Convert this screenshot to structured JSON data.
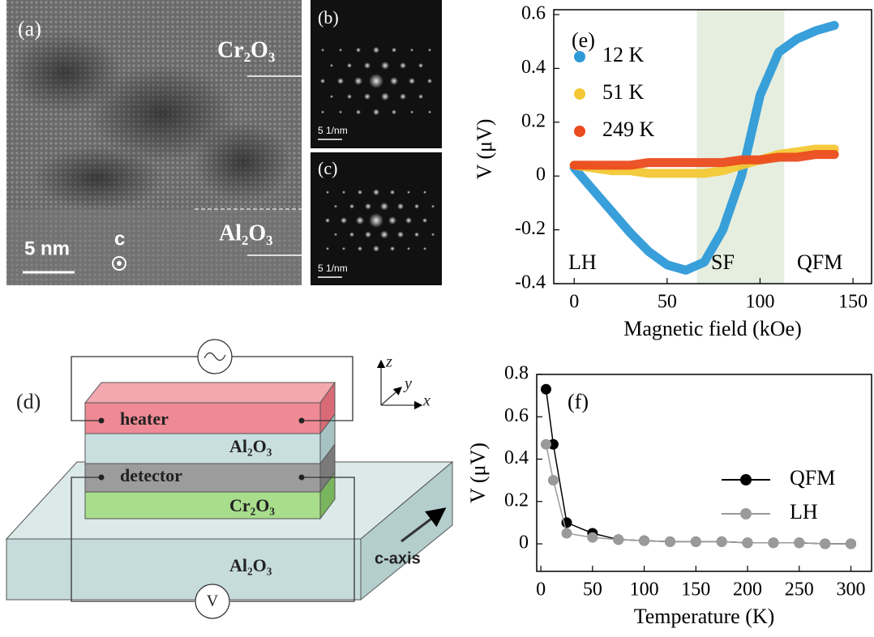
{
  "panel_a": {
    "label": "(a)",
    "top_layer": "Cr₂O₃",
    "bottom_layer": "Al₂O₃",
    "scale_bar": "5 nm",
    "axis": "c"
  },
  "panel_b": {
    "label": "(b)",
    "scale": "5 1/nm"
  },
  "panel_c": {
    "label": "(c)",
    "scale": "5 1/nm"
  },
  "panel_d": {
    "label": "(d)",
    "heater": "heater",
    "middle_layer": "Al₂O₃",
    "detector": "detector",
    "film": "Cr₂O₃",
    "substrate": "Al₂O₃",
    "c_axis": "c-axis",
    "axes": [
      "z",
      "y",
      "x"
    ],
    "voltmeter": "V"
  },
  "chart_data": [
    {
      "type": "line",
      "panel_label": "(e)",
      "x_label": "Magnetic field (kOe)",
      "y_label": "V (μV)",
      "x": [
        0,
        10,
        20,
        30,
        40,
        50,
        60,
        70,
        80,
        90,
        100,
        110,
        120,
        130,
        140
      ],
      "series": [
        {
          "name": "12 K",
          "color": "#2e9ad8",
          "values": [
            0.03,
            -0.05,
            -0.13,
            -0.21,
            -0.28,
            -0.33,
            -0.35,
            -0.32,
            -0.2,
            0.0,
            0.3,
            0.46,
            0.51,
            0.54,
            0.56
          ]
        },
        {
          "name": "51 K",
          "color": "#f3c834",
          "values": [
            0.04,
            0.03,
            0.02,
            0.02,
            0.01,
            0.01,
            0.01,
            0.01,
            0.02,
            0.04,
            0.06,
            0.08,
            0.09,
            0.1,
            0.1
          ]
        },
        {
          "name": "249 K",
          "color": "#eb4b1e",
          "values": [
            0.04,
            0.04,
            0.04,
            0.04,
            0.05,
            0.05,
            0.05,
            0.05,
            0.05,
            0.06,
            0.06,
            0.07,
            0.07,
            0.08,
            0.08
          ]
        }
      ],
      "shaded_range": [
        66,
        113
      ],
      "annotations": [
        "LH",
        "SF",
        "QFM"
      ],
      "xlim": [
        -11,
        160
      ],
      "xticks": [
        0,
        50,
        100,
        150
      ],
      "ylim": [
        -0.4,
        0.6
      ],
      "yticks": [
        -0.4,
        -0.2,
        0,
        0.2,
        0.4,
        0.6
      ],
      "legend": "upper left"
    },
    {
      "type": "line",
      "panel_label": "(f)",
      "x_label": "Temperature (K)",
      "y_label": "V (μV)",
      "x": [
        5,
        12,
        25,
        50,
        75,
        100,
        125,
        150,
        175,
        200,
        225,
        250,
        275,
        300
      ],
      "series": [
        {
          "name": "QFM",
          "color": "#000000",
          "values": [
            0.73,
            0.47,
            0.1,
            0.05,
            0.02,
            0.015,
            0.01,
            0.01,
            0.01,
            0.005,
            0.005,
            0.005,
            0.0,
            0.0
          ]
        },
        {
          "name": "LH",
          "color": "#9a9a9a",
          "values": [
            0.47,
            0.3,
            0.05,
            0.03,
            0.02,
            0.015,
            0.01,
            0.01,
            0.01,
            0.005,
            0.005,
            0.005,
            0.0,
            0.0
          ]
        }
      ],
      "xlim": [
        -4,
        320
      ],
      "xticks": [
        0,
        50,
        100,
        150,
        200,
        250,
        300
      ],
      "ylim": [
        -0.13,
        0.8
      ],
      "yticks": [
        0,
        0.2,
        0.4,
        0.6,
        0.8
      ],
      "legend": "center right"
    }
  ]
}
